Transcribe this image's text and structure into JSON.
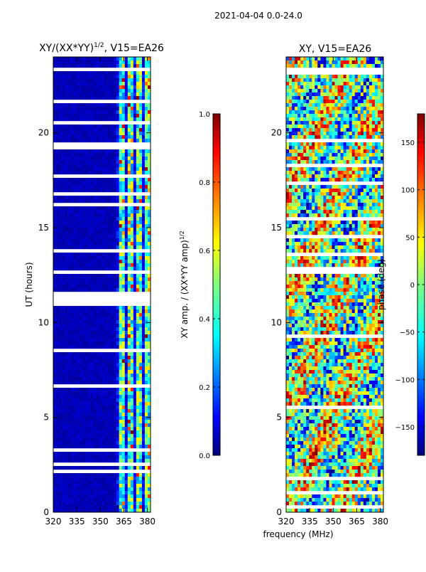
{
  "page_title": "2021-04-04 0.0-24.0",
  "chart_data": [
    {
      "type": "heatmap",
      "title": "XY/(XX*YY)^1/2, V15=EA26",
      "title_main": "XY/(XX*YY)",
      "title_exp": "1/2",
      "title_suffix": ", V15=EA26",
      "xlabel": "",
      "ylabel": "UT (hours)",
      "xlim": [
        320,
        382
      ],
      "ylim": [
        0,
        24
      ],
      "xticks": [
        320,
        335,
        350,
        365,
        380
      ],
      "yticks": [
        0,
        5,
        10,
        15,
        20
      ],
      "colorbar": {
        "label": "XY amp. / (XX*YY amp)^1/2",
        "label_main": "XY amp. / (XX*YY amp)",
        "label_exp": "1/2",
        "range": [
          0.0,
          1.0
        ],
        "ticks": [
          "0.0",
          "0.2",
          "0.4",
          "0.6",
          "0.8",
          "1.0"
        ],
        "tick_values": [
          0.0,
          0.2,
          0.4,
          0.6,
          0.8,
          1.0
        ]
      }
    },
    {
      "type": "heatmap",
      "title": "XY, V15=EA26",
      "xlabel": "frequency (MHz)",
      "ylabel": "",
      "xlim": [
        320,
        382
      ],
      "ylim": [
        0,
        24
      ],
      "xticks": [
        320,
        335,
        350,
        365,
        380
      ],
      "yticks": [
        0,
        5,
        10,
        15,
        20
      ],
      "colorbar": {
        "label": "phase (deg)",
        "range": [
          -180,
          180
        ],
        "ticks": [
          "−150",
          "−100",
          "−50",
          "0",
          "50",
          "100",
          "150"
        ],
        "tick_values": [
          -150,
          -100,
          -50,
          0,
          50,
          100,
          150
        ]
      }
    }
  ]
}
